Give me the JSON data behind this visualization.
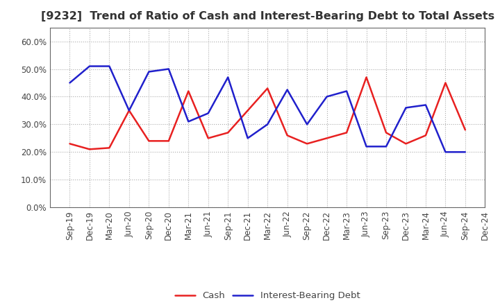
{
  "title": "[9232]  Trend of Ratio of Cash and Interest-Bearing Debt to Total Assets",
  "x_labels": [
    "Sep-19",
    "Dec-19",
    "Mar-20",
    "Jun-20",
    "Sep-20",
    "Dec-20",
    "Mar-21",
    "Jun-21",
    "Sep-21",
    "Dec-21",
    "Mar-22",
    "Jun-22",
    "Sep-22",
    "Dec-22",
    "Mar-23",
    "Jun-23",
    "Sep-23",
    "Dec-23",
    "Mar-24",
    "Jun-24",
    "Sep-24",
    "Dec-24"
  ],
  "cash": [
    23.0,
    21.0,
    21.5,
    35.0,
    24.0,
    24.0,
    42.0,
    25.0,
    27.0,
    35.0,
    43.0,
    26.0,
    23.0,
    25.0,
    27.0,
    47.0,
    27.0,
    23.0,
    26.0,
    45.0,
    28.0,
    null
  ],
  "interest_bearing_debt": [
    45.0,
    51.0,
    51.0,
    35.0,
    49.0,
    50.0,
    31.0,
    34.0,
    47.0,
    25.0,
    30.0,
    42.5,
    30.0,
    40.0,
    42.0,
    22.0,
    22.0,
    36.0,
    37.0,
    20.0,
    20.0,
    null
  ],
  "cash_color": "#e82020",
  "debt_color": "#2020cc",
  "background_color": "#ffffff",
  "grid_color": "#aaaaaa",
  "ylim": [
    0.0,
    0.65
  ],
  "yticks": [
    0.0,
    0.1,
    0.2,
    0.3,
    0.4,
    0.5,
    0.6
  ],
  "legend_cash": "Cash",
  "legend_debt": "Interest-Bearing Debt",
  "title_fontsize": 11.5,
  "axis_fontsize": 8.5,
  "legend_fontsize": 9.5
}
